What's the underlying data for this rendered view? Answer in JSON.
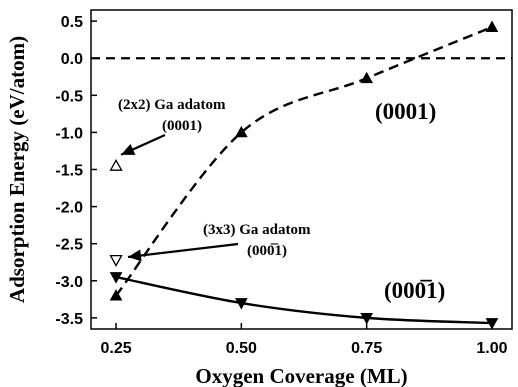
{
  "chart_data": {
    "type": "scatter",
    "title": "",
    "xlabel": "Oxygen Coverage (ML)",
    "ylabel": "Adsorption Energy (eV/atom)",
    "xlim": [
      0.2,
      1.04
    ],
    "ylim": [
      -3.65,
      0.65
    ],
    "x_ticks": [
      0.25,
      0.5,
      0.75,
      1.0
    ],
    "x_tick_labels": [
      "0.25",
      "0.50",
      "0.75",
      "1.00"
    ],
    "y_ticks": [
      0.5,
      0.0,
      -0.5,
      -1.0,
      -1.5,
      -2.0,
      -2.5,
      -3.0,
      -3.5
    ],
    "y_tick_labels": [
      "0.5",
      "0.0",
      "-0.5",
      "-1.0",
      "-1.5",
      "-2.0",
      "-2.5",
      "-3.0",
      "-3.5"
    ],
    "grid": false,
    "reference_line": {
      "y": 0.0,
      "style": "dashed"
    },
    "series": [
      {
        "name": "(0001)",
        "marker": "filled-up-triangle",
        "line_style": "dashed",
        "x": [
          0.25,
          0.5,
          0.75,
          1.0
        ],
        "values": [
          -3.2,
          -1.0,
          -0.27,
          0.42
        ]
      },
      {
        "name": "(000̅1)",
        "marker": "filled-down-triangle",
        "line_style": "solid",
        "x": [
          0.25,
          0.5,
          0.75,
          1.0
        ],
        "values": [
          -2.95,
          -3.3,
          -3.5,
          -3.57
        ]
      }
    ],
    "adatom_points": [
      {
        "x": 0.25,
        "y": -1.45,
        "marker": "open-up-triangle"
      },
      {
        "x": 0.25,
        "y": -2.72,
        "marker": "open-down-triangle"
      }
    ],
    "annotations": [
      {
        "line1": "(2x2) Ga adatom",
        "line2": "(0001)"
      },
      {
        "line1": "(3x3) Ga adatom",
        "line2": "(000̅1)"
      }
    ],
    "surface_labels": [
      "(0001)",
      "(000̅1)"
    ]
  }
}
